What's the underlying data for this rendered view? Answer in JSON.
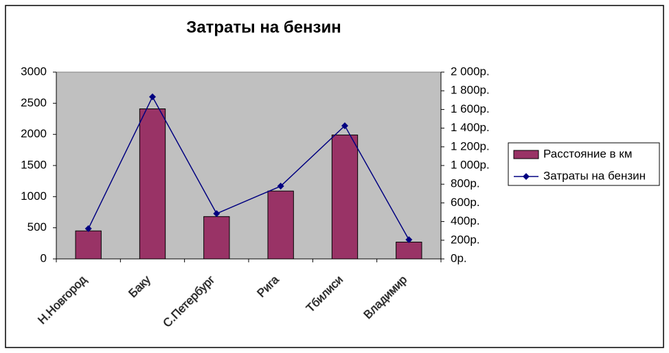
{
  "chart_data": {
    "type": "bar",
    "title": "Затраты на бензин",
    "categories": [
      "Н.Новгород",
      "Баку",
      "С.Петербург",
      "Рига",
      "Тбилиси",
      "Владимир"
    ],
    "series": [
      {
        "name": "Расстояние в км",
        "type": "bar",
        "color": "#993366",
        "values": [
          450,
          2410,
          680,
          1090,
          1990,
          270
        ]
      },
      {
        "name": "Затраты на бензин",
        "type": "line",
        "axis": "y2",
        "color": "#000080",
        "values": [
          324,
          1735,
          485,
          779,
          1426,
          206
        ]
      }
    ],
    "ylim": [
      0,
      3000
    ],
    "yticks": [
      0,
      500,
      1000,
      1500,
      2000,
      2500,
      3000
    ],
    "y2lim": [
      0,
      2000
    ],
    "y2ticks": [
      {
        "value": 0,
        "label": "0р."
      },
      {
        "value": 200,
        "label": "200р."
      },
      {
        "value": 400,
        "label": "400р."
      },
      {
        "value": 600,
        "label": "600р."
      },
      {
        "value": 800,
        "label": "800р."
      },
      {
        "value": 1000,
        "label": "1 000р."
      },
      {
        "value": 1200,
        "label": "1 200р."
      },
      {
        "value": 1400,
        "label": "1 400р."
      },
      {
        "value": 1600,
        "label": "1 600р."
      },
      {
        "value": 1800,
        "label": "1 800р."
      },
      {
        "value": 2000,
        "label": "2 000р."
      }
    ],
    "plot_background": "#c0c0c0",
    "legend": "right"
  }
}
